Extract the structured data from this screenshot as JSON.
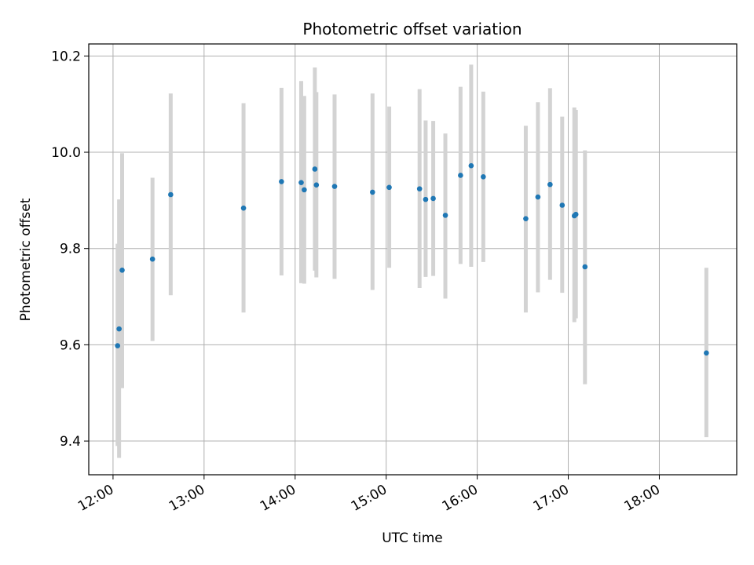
{
  "chart_data": {
    "type": "scatter",
    "title": "Photometric offset variation",
    "xlabel": "UTC time",
    "ylabel": "Photometric offset",
    "x_ticks": [
      "12:00",
      "13:00",
      "14:00",
      "15:00",
      "16:00",
      "17:00",
      "18:00"
    ],
    "y_ticks": [
      "9.4",
      "9.6",
      "9.8",
      "10.0",
      "10.2"
    ],
    "xlim": [
      "11:44",
      "18:51"
    ],
    "ylim": [
      9.33,
      10.225
    ],
    "grid": true,
    "colors": {
      "point": "#1f77b4",
      "errorbar": "#d3d3d3",
      "grid": "#b0b0b0"
    },
    "points": [
      {
        "x": "12:03",
        "y": 9.598,
        "err_low": 9.39,
        "err_high": 9.81
      },
      {
        "x": "12:04",
        "y": 9.633,
        "err_low": 9.365,
        "err_high": 9.902
      },
      {
        "x": "12:06",
        "y": 9.755,
        "err_low": 9.51,
        "err_high": 9.998
      },
      {
        "x": "12:26",
        "y": 9.778,
        "err_low": 9.608,
        "err_high": 9.947
      },
      {
        "x": "12:38",
        "y": 9.912,
        "err_low": 9.703,
        "err_high": 10.122
      },
      {
        "x": "13:26",
        "y": 9.884,
        "err_low": 9.667,
        "err_high": 10.102
      },
      {
        "x": "13:51",
        "y": 9.939,
        "err_low": 9.744,
        "err_high": 10.134
      },
      {
        "x": "14:04",
        "y": 9.937,
        "err_low": 9.728,
        "err_high": 10.148
      },
      {
        "x": "14:06",
        "y": 9.922,
        "err_low": 9.727,
        "err_high": 10.117
      },
      {
        "x": "14:13",
        "y": 9.965,
        "err_low": 9.754,
        "err_high": 10.176
      },
      {
        "x": "14:14",
        "y": 9.932,
        "err_low": 9.74,
        "err_high": 10.125
      },
      {
        "x": "14:26",
        "y": 9.929,
        "err_low": 9.737,
        "err_high": 10.12
      },
      {
        "x": "14:51",
        "y": 9.917,
        "err_low": 9.714,
        "err_high": 10.122
      },
      {
        "x": "15:02",
        "y": 9.927,
        "err_low": 9.76,
        "err_high": 10.095
      },
      {
        "x": "15:22",
        "y": 9.924,
        "err_low": 9.718,
        "err_high": 10.131
      },
      {
        "x": "15:26",
        "y": 9.902,
        "err_low": 9.741,
        "err_high": 10.066
      },
      {
        "x": "15:31",
        "y": 9.904,
        "err_low": 9.743,
        "err_high": 10.065
      },
      {
        "x": "15:39",
        "y": 9.869,
        "err_low": 9.696,
        "err_high": 10.039
      },
      {
        "x": "15:49",
        "y": 9.952,
        "err_low": 9.768,
        "err_high": 10.136
      },
      {
        "x": "15:56",
        "y": 9.972,
        "err_low": 9.762,
        "err_high": 10.182
      },
      {
        "x": "16:04",
        "y": 9.949,
        "err_low": 9.772,
        "err_high": 10.126
      },
      {
        "x": "16:32",
        "y": 9.862,
        "err_low": 9.667,
        "err_high": 10.055
      },
      {
        "x": "16:40",
        "y": 9.907,
        "err_low": 9.709,
        "err_high": 10.104
      },
      {
        "x": "16:48",
        "y": 9.933,
        "err_low": 9.735,
        "err_high": 10.133
      },
      {
        "x": "16:56",
        "y": 9.89,
        "err_low": 9.708,
        "err_high": 10.074
      },
      {
        "x": "17:04",
        "y": 9.868,
        "err_low": 9.647,
        "err_high": 10.093
      },
      {
        "x": "17:05",
        "y": 9.871,
        "err_low": 9.655,
        "err_high": 10.088
      },
      {
        "x": "17:11",
        "y": 9.762,
        "err_low": 9.518,
        "err_high": 10.004
      },
      {
        "x": "18:31",
        "y": 9.583,
        "err_low": 9.408,
        "err_high": 9.76
      }
    ]
  }
}
